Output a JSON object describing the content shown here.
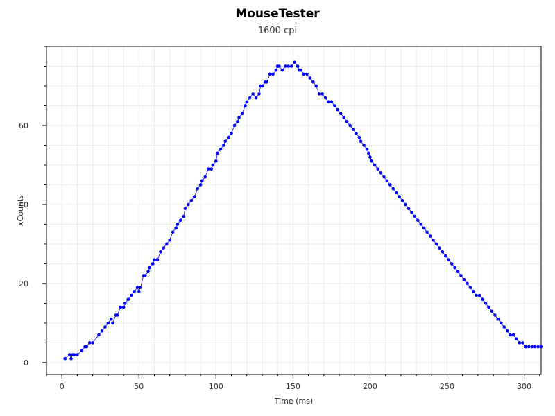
{
  "chart": {
    "title": "MouseTester",
    "subtitle": "1600 cpi",
    "xlabel": "Time (ms)",
    "ylabel": "xCounts"
  },
  "colors": {
    "series": "#0000ff",
    "grid": "#ececec",
    "axis": "#000000"
  },
  "chart_data": {
    "type": "scatter",
    "title": "MouseTester",
    "subtitle": "1600 cpi",
    "xlabel": "Time (ms)",
    "ylabel": "xCounts",
    "xlim": [
      -10,
      311
    ],
    "ylim": [
      -3,
      80
    ],
    "x_ticks": [
      0,
      50,
      100,
      150,
      200,
      250,
      300
    ],
    "y_ticks": [
      0,
      20,
      40,
      60
    ],
    "grid": true,
    "legend": "none",
    "series": [
      {
        "marker": "dot",
        "line": true,
        "x": [
          2,
          5,
          6,
          7,
          8,
          10,
          13,
          15,
          16,
          18,
          20,
          24,
          26,
          28,
          30,
          32,
          33,
          35,
          36,
          38,
          40,
          41,
          43,
          45,
          47,
          49,
          50,
          51,
          53,
          54,
          56,
          57,
          59,
          60,
          62,
          64,
          66,
          68,
          70,
          72,
          74,
          75,
          77,
          79,
          80,
          82,
          84,
          86,
          88,
          90,
          91,
          93,
          95,
          97,
          98,
          100,
          101,
          103,
          105,
          106,
          108,
          110,
          112,
          114,
          115,
          117,
          119,
          120,
          122,
          124,
          126,
          128,
          129,
          130,
          132,
          133,
          135,
          137,
          139,
          140,
          141,
          143,
          145,
          147,
          149,
          151,
          153,
          154,
          155,
          157,
          159,
          161,
          163,
          165,
          167,
          169,
          171,
          173,
          175,
          177,
          179,
          181,
          183,
          185,
          187,
          189,
          191,
          193,
          194,
          196,
          198,
          199,
          200,
          201,
          203,
          205,
          207,
          209,
          211,
          213,
          215,
          217,
          219,
          221,
          223,
          225,
          227,
          229,
          231,
          233,
          235,
          237,
          239,
          241,
          243,
          245,
          247,
          249,
          251,
          253,
          255,
          257,
          259,
          261,
          263,
          265,
          267,
          269,
          271,
          273,
          275,
          277,
          279,
          281,
          283,
          285,
          287,
          289,
          291,
          293,
          295,
          297,
          299,
          301,
          303,
          305,
          307,
          309,
          311
        ],
        "y": [
          1,
          2,
          1,
          2,
          2,
          2,
          3,
          4,
          4,
          5,
          5,
          7,
          8,
          9,
          10,
          11,
          10,
          12,
          12,
          14,
          14,
          15,
          16,
          17,
          18,
          19,
          18,
          19,
          22,
          22,
          23,
          24,
          25,
          26,
          26,
          28,
          29,
          30,
          31,
          33,
          34,
          35,
          36,
          37,
          39,
          40,
          41,
          42,
          44,
          45,
          46,
          47,
          49,
          49,
          50,
          51,
          53,
          54,
          55,
          56,
          57,
          58,
          60,
          61,
          62,
          63,
          65,
          66,
          67,
          68,
          67,
          68,
          70,
          70,
          71,
          71,
          73,
          73,
          74,
          75,
          75,
          74,
          75,
          75,
          75,
          76,
          75,
          74,
          74,
          73,
          73,
          72,
          71,
          70,
          68,
          68,
          67,
          66,
          66,
          65,
          64,
          63,
          62,
          61,
          60,
          59,
          58,
          57,
          56,
          55,
          54,
          53,
          52,
          51,
          50,
          49,
          48,
          47,
          46,
          45,
          44,
          43,
          42,
          41,
          40,
          39,
          38,
          37,
          36,
          35,
          34,
          33,
          32,
          31,
          30,
          29,
          28,
          27,
          26,
          25,
          24,
          23,
          22,
          21,
          20,
          19,
          18,
          17,
          17,
          16,
          15,
          14,
          13,
          12,
          11,
          10,
          9,
          8,
          7,
          7,
          6,
          5,
          5,
          4,
          4,
          4,
          4,
          4,
          4
        ]
      }
    ]
  }
}
